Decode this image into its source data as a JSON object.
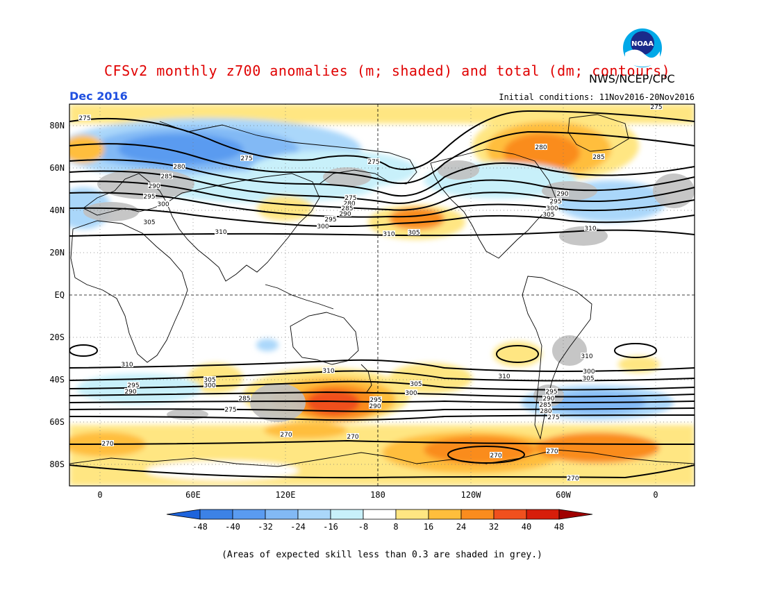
{
  "header": {
    "title": "CFSv2 monthly z700 anomalies (m; shaded) and total (dm; contours)",
    "agency": "NWS/NCEP/CPC",
    "valid_month": "Dec 2016",
    "initial_conditions": "Initial conditions: 11Nov2016-20Nov2016",
    "logo_text": "NOAA"
  },
  "axes": {
    "lat_labels": [
      "80N",
      "60N",
      "40N",
      "20N",
      "EQ",
      "20S",
      "40S",
      "60S",
      "80S"
    ],
    "lon_labels": [
      "0",
      "60E",
      "120E",
      "180",
      "120W",
      "60W",
      "0"
    ]
  },
  "colorbar": {
    "ticks": [
      "-48",
      "-40",
      "-32",
      "-24",
      "-16",
      "-8",
      "8",
      "16",
      "24",
      "32",
      "40",
      "48"
    ],
    "colors": [
      "#1e64dc",
      "#3c82e6",
      "#5a9bf0",
      "#82b9f5",
      "#aad7fa",
      "#c8f0fa",
      "#ffffff",
      "#ffe682",
      "#ffbe3c",
      "#fa8c1e",
      "#f0501e",
      "#d71e0a",
      "#a00000"
    ]
  },
  "contour_labels": [
    "275",
    "275",
    "275",
    "280",
    "285",
    "290",
    "295",
    "300",
    "305",
    "310",
    "275",
    "280",
    "285",
    "290",
    "295",
    "300",
    "305",
    "310",
    "275",
    "280",
    "285",
    "290",
    "295",
    "300",
    "305",
    "310",
    "310",
    "305",
    "300",
    "295",
    "290",
    "285",
    "275",
    "270",
    "310",
    "305",
    "300",
    "295",
    "290",
    "270",
    "270",
    "270",
    "270",
    "275",
    "280",
    "285",
    "290",
    "295",
    "300",
    "305",
    "310",
    "310",
    "270"
  ],
  "footnote": "(Areas of expected skill less than 0.3 are shaded in grey.)"
}
